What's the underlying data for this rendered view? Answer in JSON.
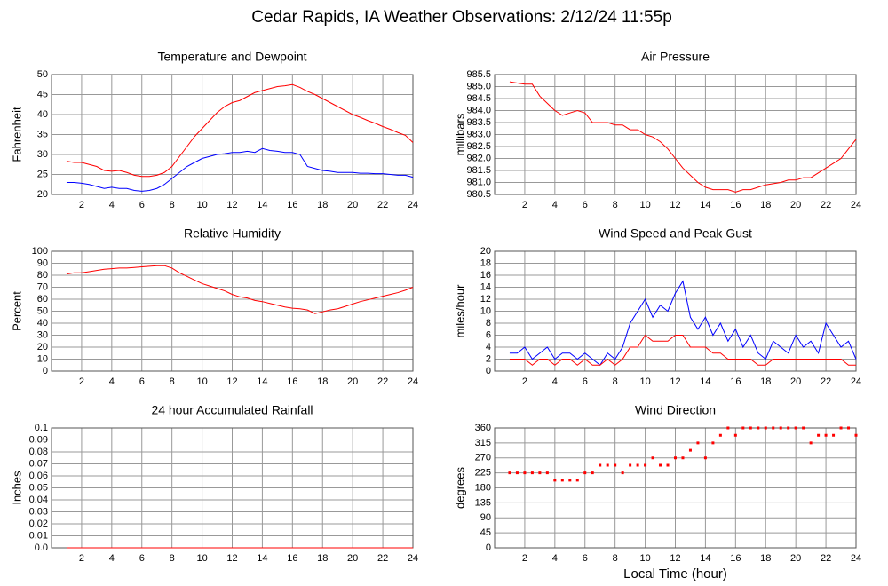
{
  "title": "Cedar Rapids, IA Weather Observations: 2/12/24 11:55p",
  "chart_data": [
    {
      "type": "line",
      "title": "Temperature and Dewpoint",
      "ylabel": "Fahrenheit",
      "grid": true,
      "x": [
        1,
        1.5,
        2,
        2.5,
        3,
        3.5,
        4,
        4.5,
        5,
        5.5,
        6,
        6.5,
        7,
        7.5,
        8,
        8.5,
        9,
        9.5,
        10,
        10.5,
        11,
        11.5,
        12,
        12.5,
        13,
        13.5,
        14,
        14.5,
        15,
        15.5,
        16,
        16.5,
        17,
        17.5,
        18,
        18.5,
        19,
        19.5,
        20,
        20.5,
        21,
        21.5,
        22,
        22.5,
        23,
        23.5,
        24
      ],
      "series": [
        {
          "color": "#ff0000",
          "values": [
            28.3,
            28,
            28,
            27.5,
            27,
            26,
            25.8,
            26,
            25.5,
            24.8,
            24.5,
            24.5,
            24.8,
            25.5,
            27,
            29.5,
            32,
            34.5,
            36.5,
            38.5,
            40.5,
            42,
            43,
            43.5,
            44.5,
            45.5,
            46,
            46.5,
            47,
            47.2,
            47.5,
            46.8,
            45.8,
            45,
            44,
            43,
            42,
            41,
            40,
            39.3,
            38.5,
            37.8,
            37,
            36.3,
            35.5,
            34.8,
            33
          ]
        },
        {
          "color": "#0000ff",
          "values": [
            23,
            23,
            22.8,
            22.5,
            22,
            21.5,
            21.8,
            21.5,
            21.5,
            21,
            20.8,
            21,
            21.5,
            22.5,
            24,
            25.5,
            27,
            28,
            29,
            29.5,
            30,
            30.2,
            30.5,
            30.5,
            30.8,
            30.5,
            31.5,
            31,
            30.8,
            30.5,
            30.5,
            30,
            27,
            26.5,
            26,
            25.8,
            25.5,
            25.5,
            25.5,
            25.3,
            25.3,
            25.2,
            25.2,
            25,
            24.8,
            24.8,
            24.3
          ]
        }
      ],
      "xlim": [
        0,
        24
      ],
      "xticks": [
        2,
        4,
        6,
        8,
        10,
        12,
        14,
        16,
        18,
        20,
        22,
        24
      ],
      "ylim": [
        20,
        50
      ],
      "yticks": [
        20,
        25,
        30,
        35,
        40,
        45,
        50
      ]
    },
    {
      "type": "line",
      "title": "Air Pressure",
      "ylabel": "millibars",
      "grid": true,
      "x": [
        1,
        1.5,
        2,
        2.5,
        3,
        3.5,
        4,
        4.5,
        5,
        5.5,
        6,
        6.5,
        7,
        7.5,
        8,
        8.5,
        9,
        9.5,
        10,
        10.5,
        11,
        11.5,
        12,
        12.5,
        13,
        13.5,
        14,
        14.5,
        15,
        15.5,
        16,
        16.5,
        17,
        17.5,
        18,
        18.5,
        19,
        19.5,
        20,
        20.5,
        21,
        21.5,
        22,
        22.5,
        23,
        23.5,
        24
      ],
      "series": [
        {
          "color": "#ff0000",
          "values": [
            985.2,
            985.15,
            985.1,
            985.1,
            984.6,
            984.3,
            984.0,
            983.8,
            983.9,
            984.0,
            983.9,
            983.5,
            983.5,
            983.5,
            983.4,
            983.4,
            983.2,
            983.2,
            983.0,
            982.9,
            982.7,
            982.4,
            982.0,
            981.6,
            981.3,
            981.0,
            980.8,
            980.7,
            980.7,
            980.7,
            980.6,
            980.7,
            980.7,
            980.8,
            980.9,
            980.95,
            981.0,
            981.1,
            981.1,
            981.2,
            981.2,
            981.4,
            981.6,
            981.8,
            982.0,
            982.4,
            982.8
          ]
        }
      ],
      "xlim": [
        0,
        24
      ],
      "xticks": [
        2,
        4,
        6,
        8,
        10,
        12,
        14,
        16,
        18,
        20,
        22,
        24
      ],
      "ylim": [
        980.5,
        985.5
      ],
      "yticks": [
        980.5,
        {
          "value": 981,
          "label": "981.0"
        },
        981.5,
        {
          "value": 982,
          "label": "982.0"
        },
        982.5,
        {
          "value": 983,
          "label": "983.0"
        },
        983.5,
        {
          "value": 984,
          "label": "984.0"
        },
        984.5,
        {
          "value": 985,
          "label": "985.0"
        },
        985.5
      ]
    },
    {
      "type": "line",
      "title": "Relative Humidity",
      "ylabel": "Percent",
      "grid": true,
      "x": [
        1,
        1.5,
        2,
        2.5,
        3,
        3.5,
        4,
        4.5,
        5,
        5.5,
        6,
        6.5,
        7,
        7.5,
        8,
        8.5,
        9,
        9.5,
        10,
        10.5,
        11,
        11.5,
        12,
        12.5,
        13,
        13.5,
        14,
        14.5,
        15,
        15.5,
        16,
        16.5,
        17,
        17.5,
        18,
        18.5,
        19,
        19.5,
        20,
        20.5,
        21,
        21.5,
        22,
        22.5,
        23,
        23.5,
        24
      ],
      "series": [
        {
          "color": "#ff0000",
          "values": [
            81,
            82,
            82,
            83,
            84,
            85,
            85.5,
            86,
            86,
            86.5,
            87,
            87.5,
            88,
            88,
            86,
            82,
            79,
            76,
            73,
            71,
            69,
            67,
            64,
            62,
            61,
            59,
            58,
            56.5,
            55,
            53.5,
            52.5,
            52,
            51,
            48,
            49.5,
            51,
            52,
            54,
            56,
            58,
            59.5,
            61,
            62.5,
            64,
            65.5,
            67.5,
            70
          ]
        }
      ],
      "xlim": [
        0,
        24
      ],
      "xticks": [
        2,
        4,
        6,
        8,
        10,
        12,
        14,
        16,
        18,
        20,
        22,
        24
      ],
      "ylim": [
        0,
        100
      ],
      "yticks": [
        0,
        10,
        20,
        30,
        40,
        50,
        60,
        70,
        80,
        90,
        100
      ]
    },
    {
      "type": "line",
      "title": "Wind Speed and Peak Gust",
      "ylabel": "miles/hour",
      "grid": true,
      "x": [
        1,
        1.5,
        2,
        2.5,
        3,
        3.5,
        4,
        4.5,
        5,
        5.5,
        6,
        6.5,
        7,
        7.5,
        8,
        8.5,
        9,
        9.5,
        10,
        10.5,
        11,
        11.5,
        12,
        12.5,
        13,
        13.5,
        14,
        14.5,
        15,
        15.5,
        16,
        16.5,
        17,
        17.5,
        18,
        18.5,
        19,
        19.5,
        20,
        20.5,
        21,
        21.5,
        22,
        22.5,
        23,
        23.5,
        24
      ],
      "series": [
        {
          "color": "#0000ff",
          "values": [
            3,
            3,
            4,
            2,
            3,
            4,
            2,
            3,
            3,
            2,
            3,
            2,
            1,
            3,
            2,
            4,
            8,
            10,
            12,
            9,
            11,
            10,
            13,
            15,
            9,
            7,
            9,
            6,
            8,
            5,
            7,
            4,
            6,
            3,
            2,
            5,
            4,
            3,
            6,
            4,
            5,
            3,
            8,
            6,
            4,
            5,
            2
          ]
        },
        {
          "color": "#ff0000",
          "values": [
            2,
            2,
            2,
            1,
            2,
            2,
            1,
            2,
            2,
            1,
            2,
            1,
            1,
            2,
            1,
            2,
            4,
            4,
            6,
            5,
            5,
            5,
            6,
            6,
            4,
            4,
            4,
            3,
            3,
            2,
            2,
            2,
            2,
            1,
            1,
            2,
            2,
            2,
            2,
            2,
            2,
            2,
            2,
            2,
            2,
            1,
            1
          ]
        }
      ],
      "xlim": [
        0,
        24
      ],
      "xticks": [
        2,
        4,
        6,
        8,
        10,
        12,
        14,
        16,
        18,
        20,
        22,
        24
      ],
      "ylim": [
        0,
        20
      ],
      "yticks": [
        0,
        2,
        4,
        6,
        8,
        10,
        12,
        14,
        16,
        18,
        20
      ]
    },
    {
      "type": "line",
      "title": "24 hour Accumulated Rainfall",
      "ylabel": "Inches",
      "grid": true,
      "x": [
        1,
        24
      ],
      "series": [
        {
          "color": "#ff0000",
          "values": [
            0,
            0
          ]
        }
      ],
      "xlim": [
        0,
        24
      ],
      "xticks": [
        2,
        4,
        6,
        8,
        10,
        12,
        14,
        16,
        18,
        20,
        22,
        24
      ],
      "ylim": [
        0,
        0.1
      ],
      "yticks": [
        {
          "value": 0,
          "label": "0.0"
        },
        0.01,
        0.02,
        0.03,
        0.04,
        0.05,
        0.06,
        0.07,
        0.08,
        0.09,
        0.1
      ]
    },
    {
      "type": "scatter",
      "title": "Wind Direction",
      "ylabel": "degrees",
      "xlabel": "Local Time (hour)",
      "grid": true,
      "x": [
        1,
        1.5,
        2,
        2.5,
        3,
        3.5,
        4,
        4.5,
        5,
        5.5,
        6,
        6.5,
        7,
        7.5,
        8,
        8.5,
        9,
        9.5,
        10,
        10.5,
        11,
        11.5,
        12,
        12.5,
        13,
        13.5,
        14,
        14.5,
        15,
        15.5,
        16,
        16.5,
        17,
        17.5,
        18,
        18.5,
        19,
        19.5,
        20,
        20.5,
        21,
        21.5,
        22,
        22.5,
        23,
        23.5,
        24
      ],
      "series": [
        {
          "color": "#ff0000",
          "values": [
            225,
            225,
            225,
            225,
            225,
            225,
            203,
            203,
            203,
            203,
            225,
            225,
            248,
            248,
            248,
            225,
            248,
            248,
            248,
            270,
            248,
            248,
            270,
            270,
            293,
            315,
            270,
            315,
            338,
            360,
            338,
            360,
            360,
            360,
            360,
            360,
            360,
            360,
            360,
            360,
            315,
            338,
            338,
            338,
            360,
            360,
            338
          ]
        }
      ],
      "xlim": [
        0,
        24
      ],
      "xticks": [
        2,
        4,
        6,
        8,
        10,
        12,
        14,
        16,
        18,
        20,
        22,
        24
      ],
      "ylim": [
        0,
        360
      ],
      "yticks": [
        0,
        45,
        90,
        135,
        180,
        225,
        270,
        315,
        360
      ]
    }
  ]
}
